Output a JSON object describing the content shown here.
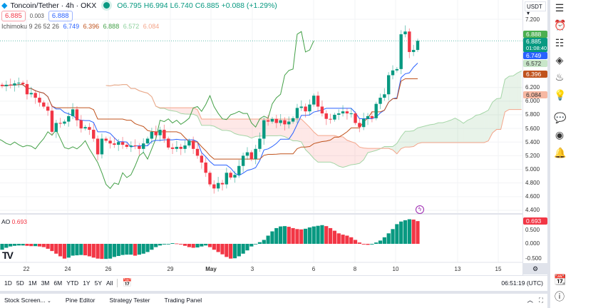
{
  "header": {
    "symbol": "Toncoin/Tether · 4h · OKX",
    "open": "O6.795",
    "high": "H6.994",
    "low": "L6.740",
    "close": "C6.885",
    "change": "+0.088 (+1.29%)",
    "sell": "6.885",
    "spread": "0.003",
    "buy": "6.888"
  },
  "ichimoku": {
    "label": "Ichimoku 9 26 52 26",
    "v1": "6.749",
    "v2": "6.396",
    "v3": "6.888",
    "v4": "6.572",
    "v5": "6.084"
  },
  "ao": {
    "label": "AO",
    "value": "0.693"
  },
  "currency": "USDT",
  "price_axis": [
    "7.200",
    "6.200",
    "6.000",
    "5.800",
    "5.600",
    "5.400",
    "5.200",
    "5.000",
    "4.800",
    "4.600",
    "4.400"
  ],
  "price_badges": {
    "lagging": "6.888",
    "last": "6.885",
    "countdown": "01:08:40",
    "tenkan": "6.749",
    "spanA": "6.572",
    "kijun": "6.396",
    "spanB": "6.084"
  },
  "ao_axis": [
    "0.500",
    "0.000",
    "-0.500"
  ],
  "date_axis": [
    "22",
    "24",
    "26",
    "29",
    "May",
    "3",
    "6",
    "8",
    "10",
    "13",
    "15"
  ],
  "ranges": [
    "1D",
    "5D",
    "1M",
    "3M",
    "6M",
    "YTD",
    "1Y",
    "5Y",
    "All"
  ],
  "clock": "06:51:19 (UTC)",
  "tabs": [
    "Stock Screen...",
    "Pine Editor",
    "Strategy Tester",
    "Trading Panel"
  ],
  "colors": {
    "up": "#089981",
    "down": "#f23645",
    "tenkan": "#2962ff",
    "kijun": "#c0531d",
    "lagging": "#43a047"
  },
  "chart_data": {
    "type": "candlestick",
    "ylim": [
      4.4,
      7.2
    ],
    "closes": [
      6.22,
      6.24,
      6.23,
      6.26,
      6.27,
      6.25,
      6.1,
      6.12,
      6.05,
      5.98,
      5.92,
      5.86,
      5.55,
      5.68,
      5.67,
      5.7,
      5.78,
      5.88,
      5.72,
      5.6,
      5.62,
      5.58,
      5.45,
      5.22,
      5.45,
      5.42,
      5.38,
      5.36,
      5.4,
      5.36,
      5.33,
      5.35,
      5.34,
      5.3,
      5.38,
      5.45,
      5.55,
      5.5,
      5.58,
      5.45,
      5.32,
      5.3,
      5.33,
      5.3,
      5.35,
      5.42,
      5.3,
      5.2,
      5.1,
      4.95,
      4.78,
      4.72,
      4.8,
      4.78,
      4.95,
      4.88,
      4.92,
      5.05,
      5.2,
      5.25,
      5.15,
      5.3,
      5.45,
      5.72,
      5.7,
      5.74,
      5.68,
      5.72,
      5.66,
      5.7,
      5.75,
      5.9,
      5.92,
      5.85,
      5.95,
      6.08,
      5.92,
      5.82,
      5.74,
      5.73,
      5.8,
      5.82,
      5.85,
      5.82,
      5.82,
      5.68,
      5.62,
      5.74,
      5.78,
      5.75,
      5.96,
      6.05,
      6.1,
      6.38,
      6.45,
      6.47,
      6.98,
      7.02,
      6.72,
      6.75,
      6.885
    ],
    "ao_values": [
      -0.18,
      -0.12,
      -0.08,
      -0.06,
      -0.05,
      -0.05,
      -0.06,
      -0.07,
      -0.07,
      -0.08,
      -0.1,
      -0.15,
      -0.22,
      -0.3,
      -0.38,
      -0.45,
      -0.42,
      -0.36,
      -0.35,
      -0.34,
      -0.35,
      -0.38,
      -0.42,
      -0.45,
      -0.46,
      -0.46,
      -0.45,
      -0.4,
      -0.37,
      -0.34,
      -0.33,
      -0.33,
      -0.36,
      -0.33,
      -0.3,
      -0.25,
      -0.18,
      -0.1,
      -0.05,
      -0.02,
      0.0,
      0.02,
      0.01,
      -0.02,
      -0.06,
      -0.1,
      -0.12,
      -0.11,
      -0.08,
      -0.05,
      -0.1,
      -0.18,
      -0.25,
      -0.32,
      -0.4,
      -0.45,
      -0.44,
      -0.38,
      -0.3,
      -0.2,
      -0.08,
      0.0,
      0.05,
      0.12,
      0.25,
      0.38,
      0.48,
      0.53,
      0.54,
      0.52,
      0.48,
      0.45,
      0.44,
      0.46,
      0.5,
      0.53,
      0.55,
      0.57,
      0.54,
      0.48,
      0.4,
      0.32,
      0.28,
      0.25,
      0.2,
      0.12,
      0.04,
      -0.02,
      -0.03,
      -0.02,
      0.04,
      0.1,
      0.2,
      0.32,
      0.45,
      0.6,
      0.68,
      0.72,
      0.75,
      0.74,
      0.693
    ]
  }
}
